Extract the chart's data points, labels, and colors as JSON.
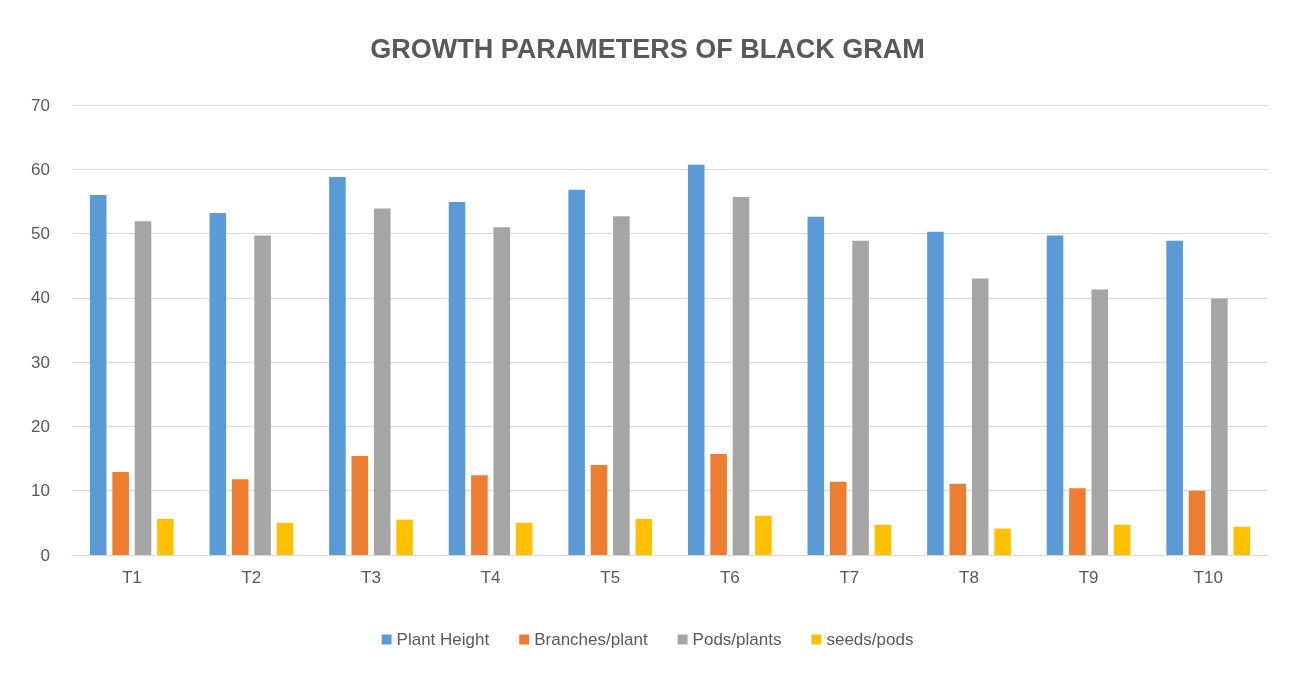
{
  "chart_data": {
    "type": "bar",
    "title": "GROWTH PARAMETERS OF BLACK GRAM",
    "categories": [
      "T1",
      "T2",
      "T3",
      "T4",
      "T5",
      "T6",
      "T7",
      "T8",
      "T9",
      "T10"
    ],
    "series": [
      {
        "name": "Plant Height",
        "color": "#5b9bd5",
        "values": [
          56,
          53.2,
          58.8,
          54.9,
          56.8,
          60.7,
          52.6,
          50.3,
          49.7,
          48.9
        ]
      },
      {
        "name": "Branches/plant",
        "color": "#ed7d31",
        "values": [
          12.9,
          11.8,
          15.4,
          12.4,
          14,
          15.7,
          11.4,
          11.1,
          10.4,
          10
        ]
      },
      {
        "name": "Pods/plants",
        "color": "#a5a5a5",
        "values": [
          51.9,
          49.7,
          53.9,
          51,
          52.7,
          55.7,
          48.9,
          43,
          41.3,
          39.9
        ]
      },
      {
        "name": "seeds/pods",
        "color": "#ffc000",
        "values": [
          5.6,
          5,
          5.5,
          5,
          5.6,
          6.1,
          4.7,
          4.1,
          4.7,
          4.4
        ]
      }
    ],
    "ylim": [
      0,
      70
    ],
    "yticks": [
      0,
      10,
      20,
      30,
      40,
      50,
      60,
      70
    ],
    "grid": "y",
    "legend": "bottom"
  }
}
